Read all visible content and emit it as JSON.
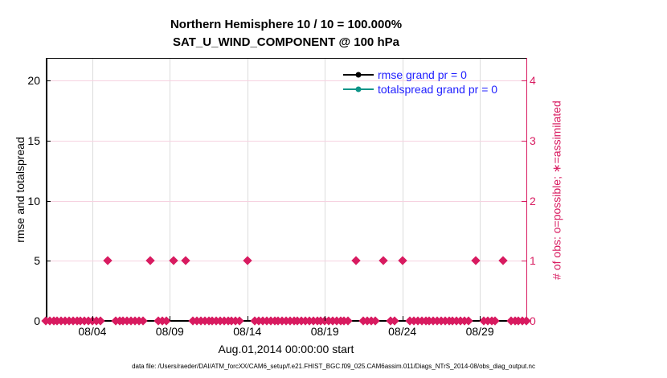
{
  "figure": {
    "title_line1": "Northern Hemisphere 10 / 10 = 100.000%",
    "title_line2": "SAT_U_WIND_COMPONENT @ 100 hPa",
    "footer": "data file: /Users/raeder/DAI/ATM_forcXX/CAM6_setup/f.e21.FHIST_BGC.f09_025.CAM6assim.011/Diags_NTrS_2014-08/obs_diag_output.nc"
  },
  "chart_data": {
    "type": "scatter",
    "title": "Northern Hemisphere 10 / 10 = 100.000%",
    "subtitle": "SAT_U_WIND_COMPONENT @ 100 hPa",
    "xlabel": "Aug.01,2014 00:00:00 start",
    "x_axis": {
      "start_label": "Aug.01,2014 00:00:00",
      "span_days": 31,
      "tick_labels": [
        "08/04",
        "08/09",
        "08/14",
        "08/19",
        "08/24",
        "08/29"
      ],
      "tick_day_offsets": [
        3,
        8,
        13,
        18,
        23,
        28
      ]
    },
    "left_axis": {
      "label": "rmse and totalspread",
      "ticks": [
        0,
        5,
        10,
        15,
        20
      ],
      "range": [
        0,
        21.9
      ],
      "color": "#000000"
    },
    "right_axis": {
      "label": "# of obs: o=possible; ∗=assimilated",
      "ticks": [
        0,
        1,
        2,
        3,
        4
      ],
      "range": [
        0,
        4.38
      ],
      "color": "#d81b60"
    },
    "legend": {
      "text_color": "#2222ff",
      "entries": [
        {
          "label": "rmse grand pr = 0",
          "color": "#000000",
          "marker": "filled-circle"
        },
        {
          "label": "totalspread grand pr = 0",
          "color": "#0d9488",
          "marker": "filled-circle"
        }
      ]
    },
    "series": [
      {
        "name": "rmse grand pr = 0",
        "color": "#000000",
        "points": []
      },
      {
        "name": "totalspread grand pr = 0",
        "color": "#0d9488",
        "points": []
      }
    ],
    "obs_count_series": {
      "description": "number of observations per assimilation cycle, plotted on right axis",
      "marker": "diamond",
      "color": "#d81b60",
      "cycle_interval_days": 0.25,
      "first_day_offset": 0,
      "last_day_offset": 31,
      "baseline_count": 0,
      "one_obs_day_offsets": [
        4.0,
        6.75,
        8.25,
        9.0,
        13.0,
        20.0,
        21.75,
        23.0,
        27.75,
        29.5
      ],
      "one_obs_count": 1
    },
    "grid": {
      "vertical_color": "#dcdcdc",
      "horizontal_color": "#f6d2e0",
      "legend_position": "top-right-inside"
    }
  }
}
